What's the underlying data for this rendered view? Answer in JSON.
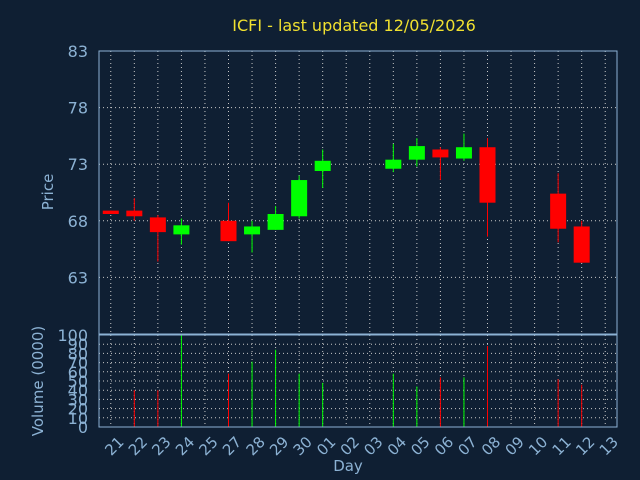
{
  "chart_data": [
    {
      "type": "candlestick",
      "title": "ICFI - last updated 12/05/2026",
      "ylabel": "Price",
      "ylim": [
        58,
        83
      ],
      "yticks": [
        63,
        68,
        73,
        78,
        83
      ],
      "grid": true,
      "categories": [
        "21",
        "22",
        "23",
        "24",
        "25",
        "27",
        "28",
        "29",
        "30",
        "01",
        "02",
        "03",
        "04",
        "05",
        "06",
        "07",
        "08",
        "09",
        "10",
        "11",
        "12",
        "13"
      ],
      "series": [
        {
          "x": "21",
          "open": 68.9,
          "close": 68.6,
          "high": 68.9,
          "low": 68.6
        },
        {
          "x": "22",
          "open": 68.9,
          "close": 68.4,
          "high": 70.0,
          "low": 68.0
        },
        {
          "x": "23",
          "open": 68.3,
          "close": 67.0,
          "high": 68.5,
          "low": 64.4
        },
        {
          "x": "24",
          "open": 66.8,
          "close": 67.6,
          "high": 68.2,
          "low": 65.9
        },
        {
          "x": "27",
          "open": 68.0,
          "close": 66.2,
          "high": 69.6,
          "low": 66.2
        },
        {
          "x": "28",
          "open": 66.8,
          "close": 67.5,
          "high": 68.0,
          "low": 65.2
        },
        {
          "x": "29",
          "open": 67.2,
          "close": 68.6,
          "high": 69.3,
          "low": 67.2
        },
        {
          "x": "30",
          "open": 68.4,
          "close": 71.6,
          "high": 72.0,
          "low": 68.2
        },
        {
          "x": "01",
          "open": 72.4,
          "close": 73.3,
          "high": 74.3,
          "low": 70.9
        },
        {
          "x": "04",
          "open": 72.6,
          "close": 73.4,
          "high": 74.8,
          "low": 72.3
        },
        {
          "x": "05",
          "open": 73.4,
          "close": 74.6,
          "high": 75.3,
          "low": 72.8
        },
        {
          "x": "06",
          "open": 74.3,
          "close": 73.6,
          "high": 74.5,
          "low": 71.6
        },
        {
          "x": "07",
          "open": 73.5,
          "close": 74.5,
          "high": 75.7,
          "low": 73.3
        },
        {
          "x": "08",
          "open": 74.5,
          "close": 69.6,
          "high": 75.3,
          "low": 66.6
        },
        {
          "x": "11",
          "open": 70.4,
          "close": 67.3,
          "high": 72.2,
          "low": 66.1
        },
        {
          "x": "12",
          "open": 67.5,
          "close": 64.3,
          "high": 68.0,
          "low": 64.3
        }
      ]
    },
    {
      "type": "bar",
      "ylabel": "Volume (0000)",
      "xlabel": "Day",
      "ylim": [
        0,
        100
      ],
      "yticks": [
        0,
        10,
        20,
        30,
        40,
        50,
        60,
        70,
        80,
        90,
        100
      ],
      "categories": [
        "21",
        "22",
        "23",
        "24",
        "25",
        "27",
        "28",
        "29",
        "30",
        "01",
        "02",
        "03",
        "04",
        "05",
        "06",
        "07",
        "08",
        "09",
        "10",
        "11",
        "12",
        "13"
      ],
      "series": [
        {
          "x": "22",
          "value": 40,
          "color": "#ff0000"
        },
        {
          "x": "23",
          "value": 40,
          "color": "#ff0000"
        },
        {
          "x": "24",
          "value": 100,
          "color": "#00ff00"
        },
        {
          "x": "27",
          "value": 58,
          "color": "#ff0000"
        },
        {
          "x": "28",
          "value": 71,
          "color": "#00ff00"
        },
        {
          "x": "29",
          "value": 84,
          "color": "#00ff00"
        },
        {
          "x": "30",
          "value": 58,
          "color": "#00ff00"
        },
        {
          "x": "01",
          "value": 48,
          "color": "#00ff00"
        },
        {
          "x": "04",
          "value": 58,
          "color": "#00ff00"
        },
        {
          "x": "05",
          "value": 44,
          "color": "#00ff00"
        },
        {
          "x": "06",
          "value": 54,
          "color": "#ff0000"
        },
        {
          "x": "07",
          "value": 54,
          "color": "#00ff00"
        },
        {
          "x": "08",
          "value": 88,
          "color": "#ff0000"
        },
        {
          "x": "11",
          "value": 52,
          "color": "#ff0000"
        },
        {
          "x": "12",
          "value": 46,
          "color": "#ff0000"
        }
      ]
    }
  ],
  "colors": {
    "background": "#0f1f33",
    "up": "#00ff00",
    "down": "#ff0000",
    "title": "#f0e030",
    "axis": "#8cb2d4",
    "grid": "#c8c8c8"
  }
}
